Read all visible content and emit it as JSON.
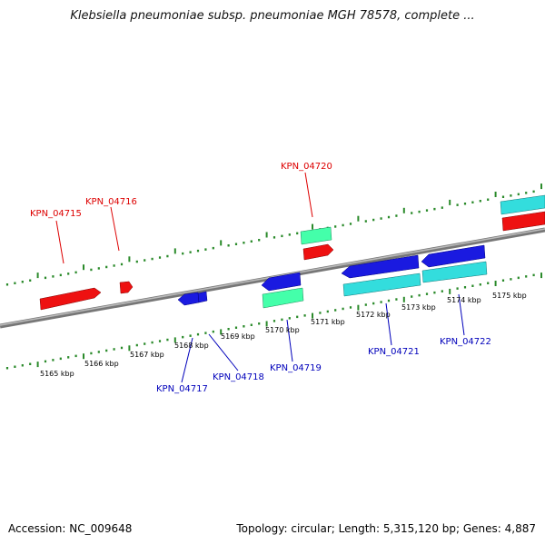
{
  "title": "Klebsiella pneumoniae subsp. pneumoniae MGH 78578, complete ...",
  "footer": {
    "accession": "Accession: NC_009648",
    "stats": "Topology: circular; Length: 5,315,120 bp; Genes: 4,887"
  },
  "axis": {
    "unit": "kbp",
    "ticks": [
      "5165 kbp",
      "5166 kbp",
      "5167 kbp",
      "5168 kbp",
      "5169 kbp",
      "5170 kbp",
      "5171 kbp",
      "5172 kbp",
      "5173 kbp",
      "5174 kbp",
      "5175 kbp"
    ]
  },
  "colors": {
    "forward_gene": "#ff0000",
    "reverse_gene": "#0000dd",
    "forward_label": "#dd0000",
    "reverse_label": "#0000bb",
    "feature_green": "#33ff99",
    "feature_cyan": "#33cccc",
    "tick_green": "#2a8a2a",
    "backbone": "#888888"
  },
  "genes": [
    {
      "id": "KPN_04715",
      "strand": "forward"
    },
    {
      "id": "KPN_04716",
      "strand": "forward"
    },
    {
      "id": "KPN_04717",
      "strand": "reverse"
    },
    {
      "id": "KPN_04718",
      "strand": "reverse"
    },
    {
      "id": "KPN_04719",
      "strand": "reverse"
    },
    {
      "id": "KPN_04720",
      "strand": "forward"
    },
    {
      "id": "KPN_04721",
      "strand": "reverse"
    },
    {
      "id": "KPN_04722",
      "strand": "reverse"
    }
  ]
}
